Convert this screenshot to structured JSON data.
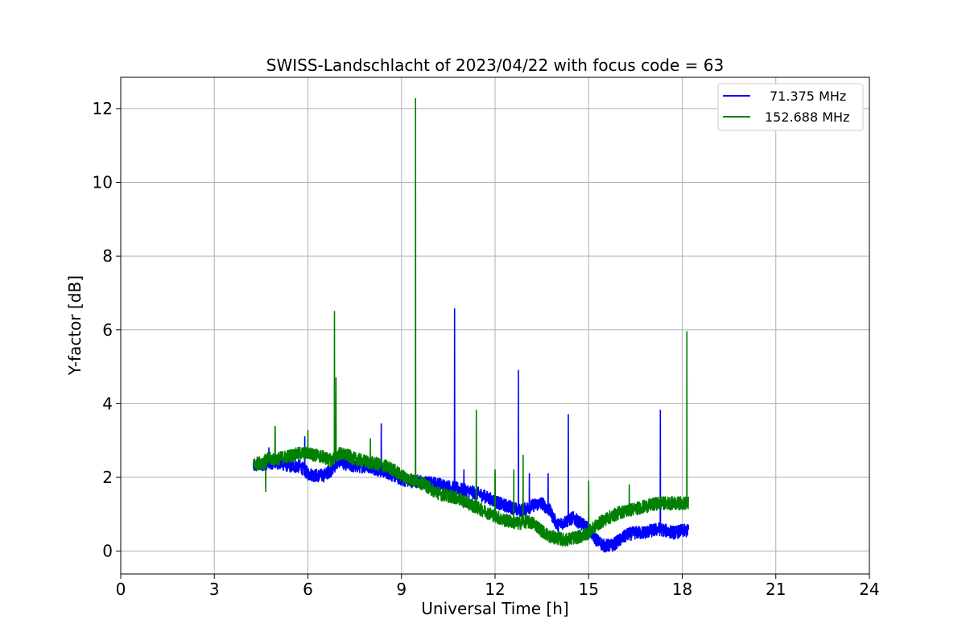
{
  "chart_data": {
    "type": "line",
    "title": "SWISS-Landschlacht of 2023/04/22 with focus code = 63",
    "xlabel": "Universal Time [h]",
    "ylabel": "Y-factor [dB]",
    "xlim": [
      0,
      24
    ],
    "ylim": [
      -0.62,
      12.85
    ],
    "xticks": [
      0,
      3,
      6,
      9,
      12,
      15,
      18,
      21,
      24
    ],
    "yticks": [
      0,
      2,
      4,
      6,
      8,
      10,
      12
    ],
    "grid": true,
    "legend_position": "top-right",
    "series": [
      {
        "name": "71.375 MHz",
        "color": "#0000ff",
        "x": [
          4.25,
          4.5,
          4.75,
          5.0,
          5.25,
          5.5,
          5.75,
          6.0,
          6.25,
          6.5,
          6.75,
          7.0,
          7.25,
          7.5,
          7.75,
          8.0,
          8.25,
          8.5,
          8.75,
          9.0,
          9.25,
          9.5,
          9.75,
          10.0,
          10.25,
          10.5,
          10.75,
          11.0,
          11.25,
          11.5,
          11.75,
          12.0,
          12.25,
          12.5,
          12.75,
          13.0,
          13.25,
          13.5,
          13.75,
          14.0,
          14.25,
          14.5,
          14.75,
          15.0,
          15.25,
          15.5,
          15.75,
          16.0,
          16.25,
          16.5,
          16.75,
          17.0,
          17.25,
          17.5,
          17.75,
          18.0,
          18.2
        ],
        "y": [
          2.3,
          2.35,
          2.4,
          2.4,
          2.35,
          2.3,
          2.3,
          2.1,
          2.05,
          2.05,
          2.2,
          2.45,
          2.35,
          2.3,
          2.3,
          2.3,
          2.2,
          2.15,
          2.05,
          1.95,
          1.9,
          1.9,
          1.85,
          1.85,
          1.8,
          1.75,
          1.7,
          1.65,
          1.6,
          1.55,
          1.45,
          1.35,
          1.25,
          1.2,
          1.1,
          1.15,
          1.25,
          1.3,
          1.1,
          0.7,
          0.8,
          0.9,
          0.75,
          0.6,
          0.3,
          0.15,
          0.15,
          0.3,
          0.45,
          0.5,
          0.5,
          0.55,
          0.6,
          0.55,
          0.5,
          0.55,
          0.55
        ]
      },
      {
        "name": "152.688 MHz",
        "color": "#008000",
        "x": [
          4.25,
          4.5,
          4.75,
          5.0,
          5.25,
          5.5,
          5.75,
          6.0,
          6.25,
          6.5,
          6.75,
          7.0,
          7.25,
          7.5,
          7.75,
          8.0,
          8.25,
          8.5,
          8.75,
          9.0,
          9.25,
          9.5,
          9.75,
          10.0,
          10.25,
          10.5,
          10.75,
          11.0,
          11.25,
          11.5,
          11.75,
          12.0,
          12.25,
          12.5,
          12.75,
          13.0,
          13.25,
          13.5,
          13.75,
          14.0,
          14.25,
          14.5,
          14.75,
          15.0,
          15.25,
          15.5,
          15.75,
          16.0,
          16.25,
          16.5,
          16.75,
          17.0,
          17.25,
          17.5,
          17.75,
          18.0,
          18.2
        ],
        "y": [
          2.35,
          2.4,
          2.5,
          2.5,
          2.55,
          2.6,
          2.65,
          2.65,
          2.6,
          2.55,
          2.45,
          2.65,
          2.6,
          2.5,
          2.45,
          2.4,
          2.35,
          2.3,
          2.2,
          2.05,
          1.95,
          1.9,
          1.8,
          1.65,
          1.55,
          1.5,
          1.45,
          1.35,
          1.25,
          1.15,
          1.05,
          0.95,
          0.85,
          0.8,
          0.75,
          0.8,
          0.75,
          0.55,
          0.4,
          0.35,
          0.3,
          0.35,
          0.4,
          0.5,
          0.7,
          0.85,
          0.95,
          1.05,
          1.1,
          1.15,
          1.2,
          1.25,
          1.3,
          1.3,
          1.3,
          1.3,
          1.3
        ]
      }
    ],
    "spikes": [
      {
        "series": 0,
        "x": 4.75,
        "y": 2.8
      },
      {
        "series": 0,
        "x": 5.9,
        "y": 3.1
      },
      {
        "series": 0,
        "x": 8.35,
        "y": 3.45
      },
      {
        "series": 0,
        "x": 10.7,
        "y": 6.57
      },
      {
        "series": 0,
        "x": 11.0,
        "y": 2.2
      },
      {
        "series": 0,
        "x": 12.75,
        "y": 4.9
      },
      {
        "series": 0,
        "x": 13.1,
        "y": 2.1
      },
      {
        "series": 0,
        "x": 13.7,
        "y": 2.1
      },
      {
        "series": 0,
        "x": 14.35,
        "y": 3.7
      },
      {
        "series": 0,
        "x": 17.3,
        "y": 3.82
      },
      {
        "series": 1,
        "x": 4.65,
        "y": 1.62
      },
      {
        "series": 1,
        "x": 4.95,
        "y": 3.38
      },
      {
        "series": 1,
        "x": 6.0,
        "y": 3.27
      },
      {
        "series": 1,
        "x": 6.85,
        "y": 6.5
      },
      {
        "series": 1,
        "x": 6.9,
        "y": 4.7
      },
      {
        "series": 1,
        "x": 8.0,
        "y": 3.05
      },
      {
        "series": 1,
        "x": 9.45,
        "y": 12.27
      },
      {
        "series": 1,
        "x": 11.4,
        "y": 3.82
      },
      {
        "series": 1,
        "x": 12.0,
        "y": 2.2
      },
      {
        "series": 1,
        "x": 12.6,
        "y": 2.2
      },
      {
        "series": 1,
        "x": 12.9,
        "y": 2.6
      },
      {
        "series": 1,
        "x": 15.0,
        "y": 1.9
      },
      {
        "series": 1,
        "x": 16.3,
        "y": 1.8
      },
      {
        "series": 1,
        "x": 18.15,
        "y": 5.95
      }
    ],
    "noise_amplitude": 0.18
  }
}
